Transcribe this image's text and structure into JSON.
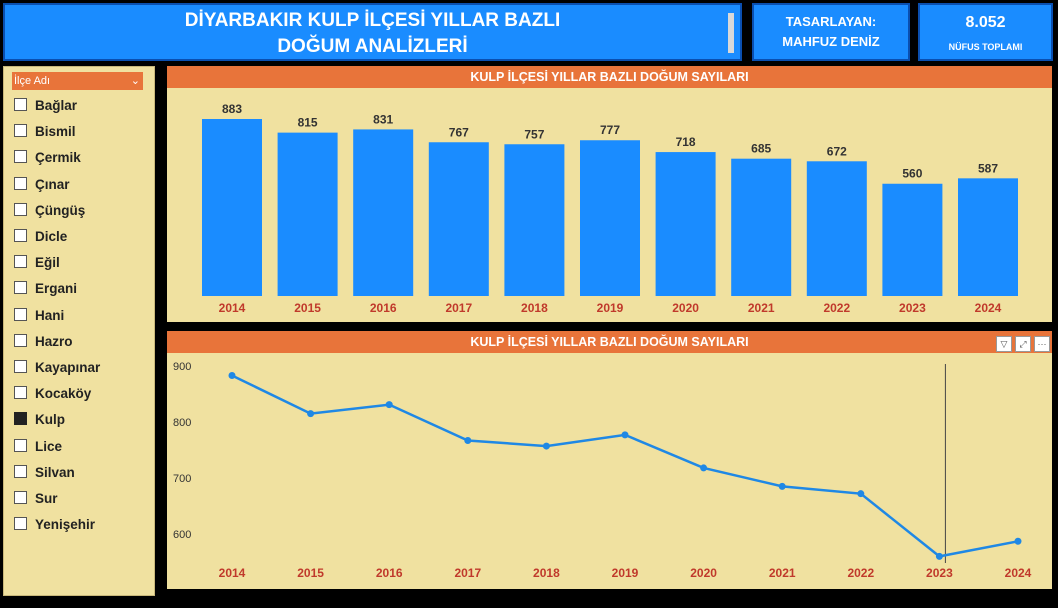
{
  "header": {
    "title_line1": "DİYARBAKIR KULP İLÇESİ YILLAR BAZLI",
    "title_line2": "DOĞUM ANALİZLERİ",
    "designer_label": "TASARLAYAN:",
    "designer_name": "MAHFUZ DENİZ",
    "population_value": "8.052",
    "population_label": "NÜFUS TOPLAMI"
  },
  "slicer": {
    "title": "İlçe Adı",
    "items": [
      {
        "label": "Bağlar",
        "checked": false
      },
      {
        "label": "Bismil",
        "checked": false
      },
      {
        "label": "Çermik",
        "checked": false
      },
      {
        "label": "Çınar",
        "checked": false
      },
      {
        "label": "Çüngüş",
        "checked": false
      },
      {
        "label": "Dicle",
        "checked": false
      },
      {
        "label": "Eğil",
        "checked": false
      },
      {
        "label": "Ergani",
        "checked": false
      },
      {
        "label": "Hani",
        "checked": false
      },
      {
        "label": "Hazro",
        "checked": false
      },
      {
        "label": "Kayapınar",
        "checked": false
      },
      {
        "label": "Kocaköy",
        "checked": false
      },
      {
        "label": "Kulp",
        "checked": true
      },
      {
        "label": "Lice",
        "checked": false
      },
      {
        "label": "Silvan",
        "checked": false
      },
      {
        "label": "Sur",
        "checked": false
      },
      {
        "label": "Yenişehir",
        "checked": false
      }
    ]
  },
  "colors": {
    "bar": "#1a8cff",
    "line": "#1f88e5",
    "axis_label": "#c0392b",
    "header_orange": "#e8743a",
    "panel_bg": "#f0e1a0"
  },
  "chart_data": [
    {
      "type": "bar",
      "title": "KULP İLÇESİ YILLAR BAZLI DOĞUM SAYILARI",
      "categories": [
        "2014",
        "2015",
        "2016",
        "2017",
        "2018",
        "2019",
        "2020",
        "2021",
        "2022",
        "2023",
        "2024"
      ],
      "values": [
        883,
        815,
        831,
        767,
        757,
        777,
        718,
        685,
        672,
        560,
        587
      ],
      "ylim": [
        0,
        1000
      ],
      "grid": false
    },
    {
      "type": "line",
      "title": "KULP İLÇESİ YILLAR BAZLI DOĞUM SAYILARI",
      "categories": [
        "2014",
        "2015",
        "2016",
        "2017",
        "2018",
        "2019",
        "2020",
        "2021",
        "2022",
        "2023",
        "2024"
      ],
      "values": [
        883,
        815,
        831,
        767,
        757,
        777,
        718,
        685,
        672,
        560,
        587
      ],
      "yticks": [
        600,
        700,
        800,
        900
      ],
      "ylim": [
        550,
        905
      ],
      "grid": false,
      "highlight_category": "2023",
      "tool_icons": [
        "filter-icon",
        "focus-mode-icon",
        "more-options-icon"
      ]
    }
  ]
}
